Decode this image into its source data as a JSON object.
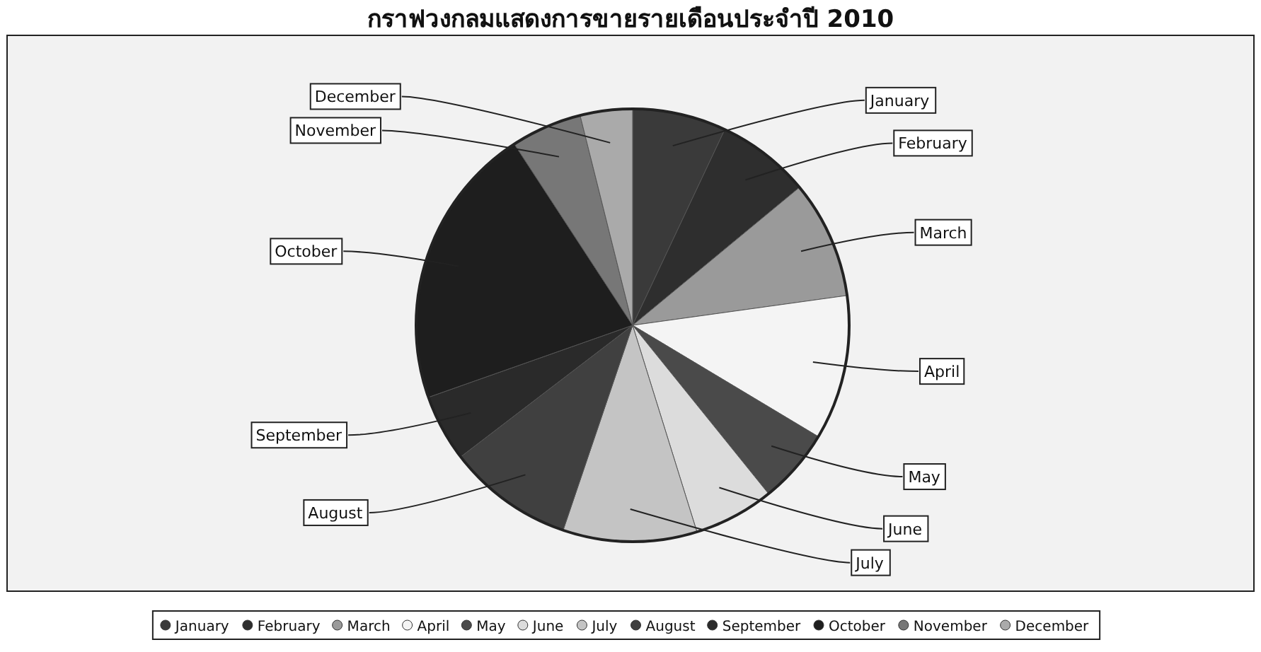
{
  "chart_data": {
    "type": "pie",
    "title": "กราฟวงกลมแสดงการขายรายเดือนประจำปี 2010",
    "categories": [
      "January",
      "February",
      "March",
      "April",
      "May",
      "June",
      "July",
      "August",
      "September",
      "October",
      "November",
      "December"
    ],
    "values": [
      7,
      7,
      8.8,
      10.8,
      5.6,
      6,
      10,
      9.4,
      5,
      21.2,
      5.3,
      3.9
    ],
    "colors": [
      "#3a3a3a",
      "#2e2e2e",
      "#9a9a9a",
      "#f4f4f4",
      "#4a4a4a",
      "#dcdcdc",
      "#c4c4c4",
      "#404040",
      "#2a2a2a",
      "#1e1e1e",
      "#777777",
      "#aaaaaa"
    ],
    "legend": "bottom"
  }
}
